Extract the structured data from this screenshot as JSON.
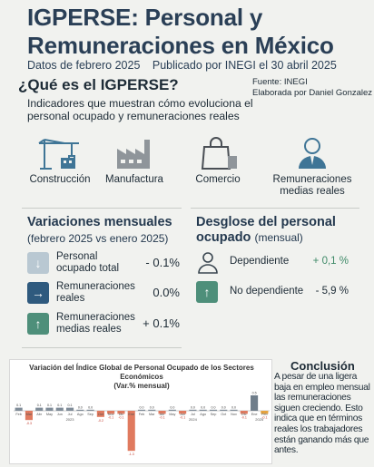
{
  "header": {
    "title": "IGPERSE: Personal y Remuneraciones en México",
    "dates_label": "Datos de febrero 2025",
    "published_label": "Publicado por INEGI el 30 abril 2025"
  },
  "intro": {
    "heading": "¿Qué es el IGPERSE?",
    "text": "Indicadores que muestran cómo evoluciona el personal ocupado y remuneraciones reales",
    "source": "Fuente: INEGI",
    "author": "Elaborada por Daniel Gonzalez"
  },
  "sectors": [
    {
      "label": "Construcción",
      "icon": "crane-icon"
    },
    {
      "label": "Manufactura",
      "icon": "factory-icon"
    },
    {
      "label": "Comercio",
      "icon": "shopping-bag-icon"
    },
    {
      "label": "Remuneraciones medias reales",
      "icon": "person-icon"
    }
  ],
  "variations": {
    "heading": "Variaciones mensuales",
    "subheading": "(febrero 2025 vs enero 2025)",
    "rows": [
      {
        "label": "Personal ocupado total",
        "value": "- 0.1%",
        "icon": "arrow-down-icon",
        "color": "#b9c8d2"
      },
      {
        "label": "Remuneraciones reales",
        "value": "0.0%",
        "icon": "arrow-right-icon",
        "color": "#2f5a7e"
      },
      {
        "label": "Remuneraciones medias reales",
        "value": "+ 0.1%",
        "icon": "arrow-up-icon",
        "color": "#4e8f7a"
      }
    ]
  },
  "breakdown": {
    "heading": "Desglose del personal ocupado",
    "subheading": "(mensual)",
    "rows": [
      {
        "label": "Dependiente",
        "value": "+ 0,1 %",
        "icon": "person-outline-icon",
        "value_color": "#3f8a68"
      },
      {
        "label": "No dependiente",
        "value": "- 5,9 %",
        "icon": "arrow-up-icon",
        "value_color": "#1d2b36"
      }
    ]
  },
  "chart_data": {
    "type": "bar",
    "title": "Variación del Índice Global de Personal Ocupado de los Sectores Económicos",
    "subtitle": "(Var.% mensual)",
    "categories": [
      "Feb",
      "Mar",
      "Abr",
      "May",
      "Jun",
      "Jul",
      "Ago",
      "Sep",
      "Oct",
      "Nov",
      "Dic",
      "Ene",
      "Feb",
      "Mar",
      "Abr",
      "May",
      "Jun",
      "Jul",
      "Ago",
      "Sep",
      "Oct",
      "Nov",
      "Dic",
      "Ene",
      "Feb"
    ],
    "years": [
      "2023",
      "2024",
      "2025"
    ],
    "values": [
      0.1,
      -0.3,
      0.1,
      0.1,
      0.1,
      0.1,
      0.0,
      0.0,
      -0.2,
      -0.1,
      -0.1,
      -1.3,
      0.0,
      0.0,
      -0.1,
      0.0,
      -0.1,
      0.0,
      0.0,
      0.0,
      0.0,
      0.0,
      -0.1,
      0.5,
      -0.1
    ],
    "colors": {
      "positive": "#7f8c98",
      "negative": "#e07a5f",
      "highlight": "#e8a33d"
    },
    "ylim": [
      -1.5,
      0.6
    ]
  },
  "conclusion": {
    "heading": "Conclusión",
    "text": "A pesar de una ligera baja en empleo mensual las remuneraciones siguen creciendo. Esto indica que en términos reales los trabajadores están ganando más que antes."
  }
}
